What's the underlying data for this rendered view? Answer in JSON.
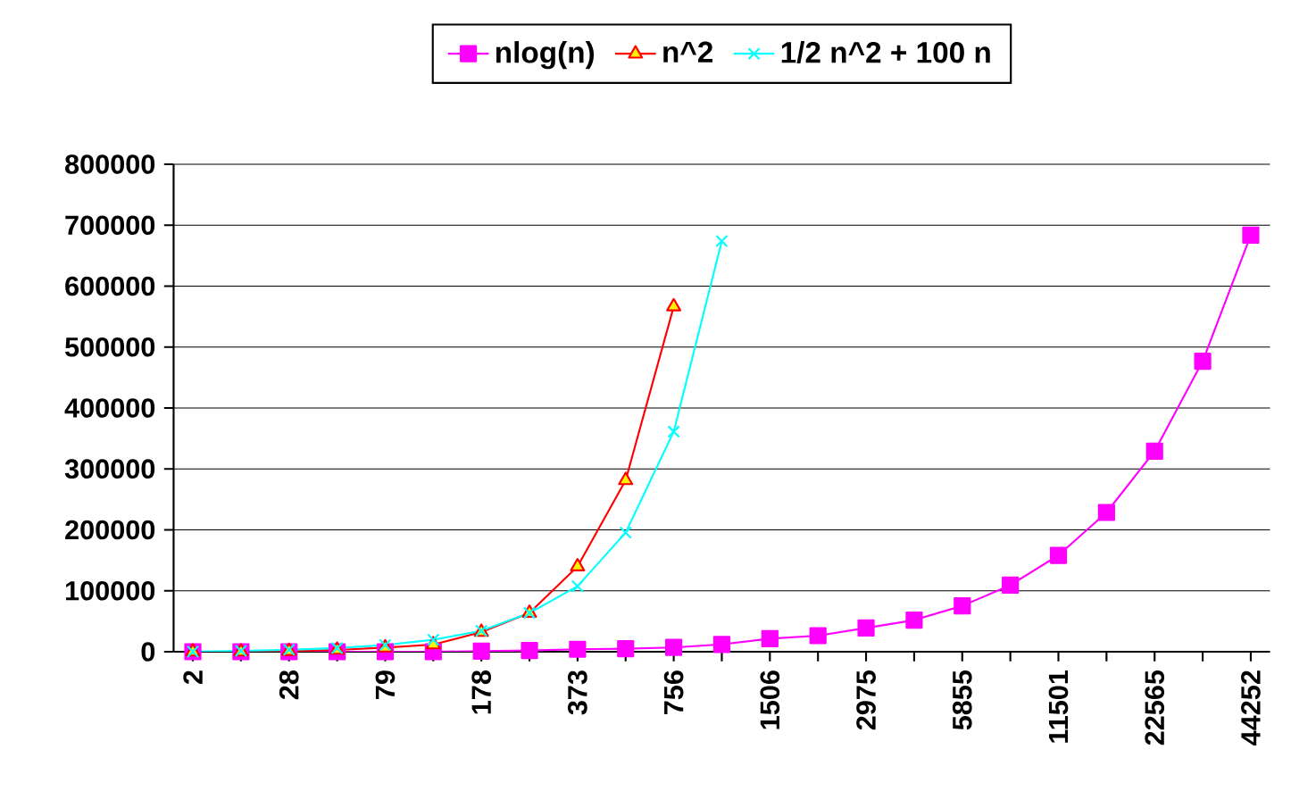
{
  "chart_data": {
    "type": "line",
    "categories": [
      "2",
      null,
      "28",
      null,
      "79",
      null,
      "178",
      null,
      "373",
      null,
      "756",
      null,
      "1506",
      null,
      "2975",
      null,
      "5855",
      null,
      "11501",
      null,
      "22565",
      null,
      "44252"
    ],
    "series": [
      {
        "name": "nlog(n)",
        "color": "#ff00ff",
        "marker": "square",
        "values": [
          0,
          0,
          0,
          0,
          0,
          0,
          1000,
          2000,
          4000,
          5000,
          7000,
          12000,
          21400,
          26400,
          39000,
          51900,
          75300,
          109300,
          158200,
          228600,
          329100,
          476800,
          683700
        ]
      },
      {
        "name": "n^2",
        "color": "#ff0000",
        "marker": "triangle",
        "values": [
          0,
          0,
          1000,
          3000,
          6700,
          11700,
          32200,
          63600,
          139800,
          281300,
          566500,
          null,
          null,
          null,
          null,
          null,
          null,
          null,
          null,
          null,
          null,
          null,
          null
        ]
      },
      {
        "name": "1/2 n^2 + 100 n",
        "color": "#00ffff",
        "marker": "cross",
        "values": [
          200,
          1500,
          3200,
          6000,
          11000,
          19600,
          34300,
          63600,
          107500,
          195400,
          361300,
          674000,
          null,
          null,
          null,
          null,
          null,
          null,
          null,
          null,
          null,
          null,
          null
        ]
      }
    ],
    "ylim": [
      0,
      800000
    ],
    "yticks": [
      0,
      100000,
      200000,
      300000,
      400000,
      500000,
      600000,
      700000,
      800000
    ],
    "grid": "y",
    "legend": "top",
    "line_style": "solid"
  }
}
